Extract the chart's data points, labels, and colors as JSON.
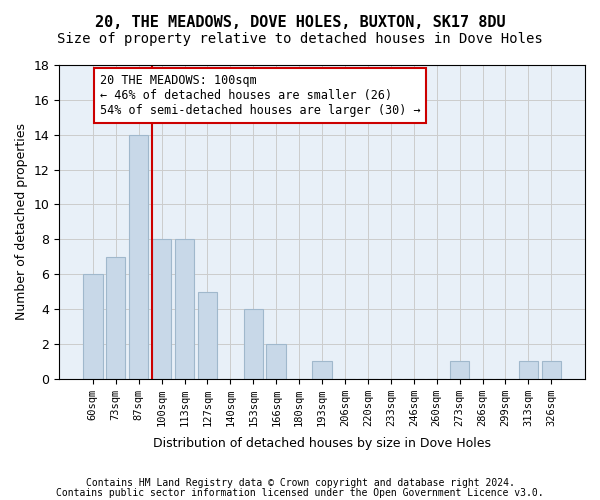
{
  "title": "20, THE MEADOWS, DOVE HOLES, BUXTON, SK17 8DU",
  "subtitle": "Size of property relative to detached houses in Dove Holes",
  "xlabel": "Distribution of detached houses by size in Dove Holes",
  "ylabel": "Number of detached properties",
  "bar_labels": [
    "60sqm",
    "73sqm",
    "87sqm",
    "100sqm",
    "113sqm",
    "127sqm",
    "140sqm",
    "153sqm",
    "166sqm",
    "180sqm",
    "193sqm",
    "206sqm",
    "220sqm",
    "233sqm",
    "246sqm",
    "260sqm",
    "273sqm",
    "286sqm",
    "299sqm",
    "313sqm",
    "326sqm"
  ],
  "bar_values": [
    6,
    7,
    14,
    8,
    8,
    5,
    0,
    4,
    2,
    0,
    1,
    0,
    0,
    0,
    0,
    0,
    1,
    0,
    0,
    1,
    1
  ],
  "bar_color": "#c8d8e8",
  "bar_edge_color": "#a0b8cc",
  "vline_color": "#cc0000",
  "annotation_text": "20 THE MEADOWS: 100sqm\n← 46% of detached houses are smaller (26)\n54% of semi-detached houses are larger (30) →",
  "annotation_box_color": "#ffffff",
  "annotation_box_edge": "#cc0000",
  "ylim": [
    0,
    18
  ],
  "yticks": [
    0,
    2,
    4,
    6,
    8,
    10,
    12,
    14,
    16,
    18
  ],
  "bg_color": "#e8f0f8",
  "footer1": "Contains HM Land Registry data © Crown copyright and database right 2024.",
  "footer2": "Contains public sector information licensed under the Open Government Licence v3.0.",
  "title_fontsize": 11,
  "subtitle_fontsize": 10
}
